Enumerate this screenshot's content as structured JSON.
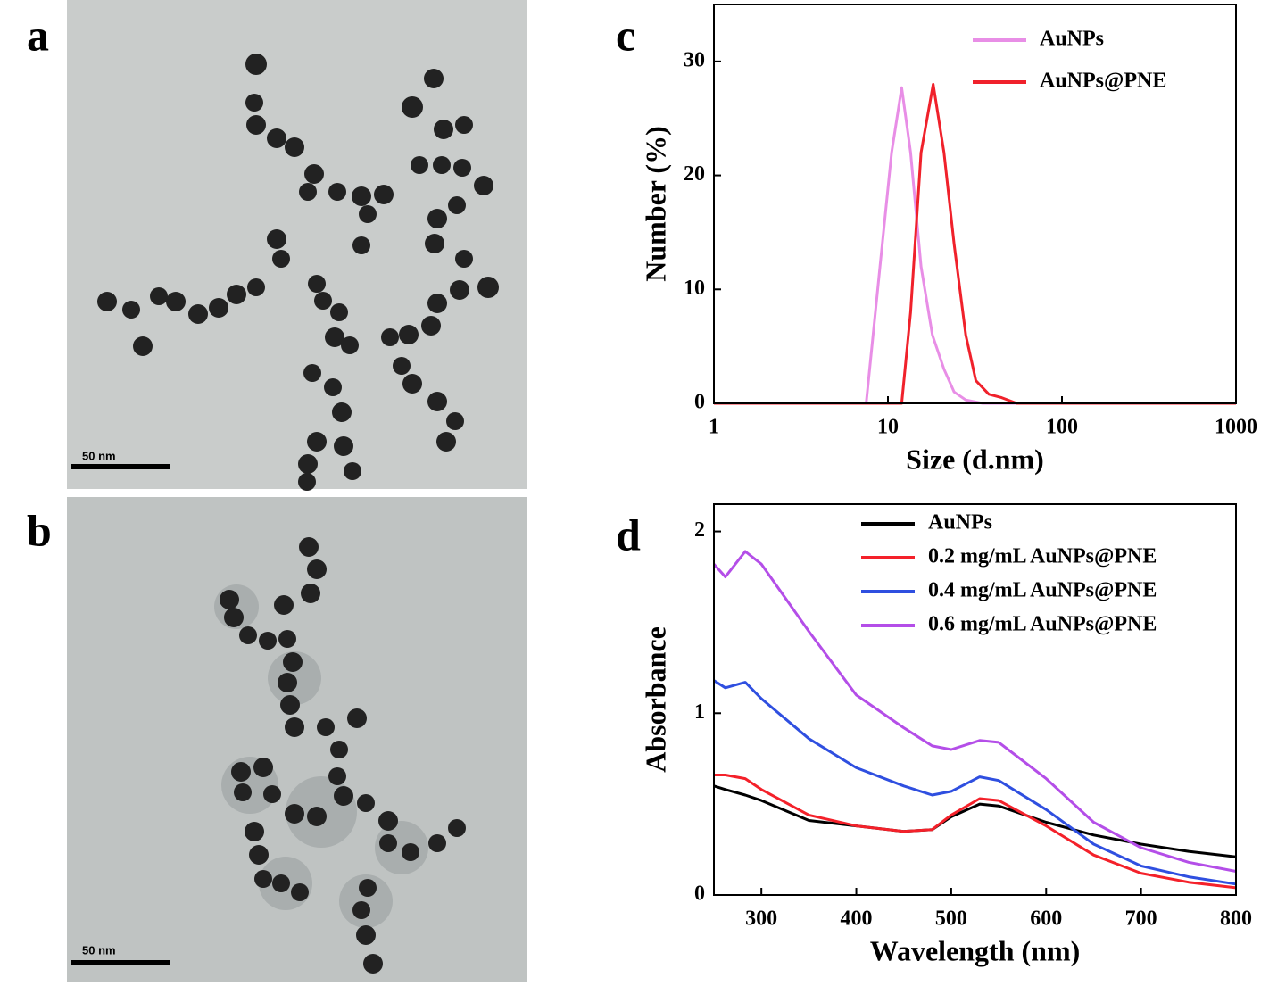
{
  "images": [
    {
      "panel": "a",
      "scale_bar": "50 nm"
    },
    {
      "panel": "b",
      "scale_bar": "50 nm"
    }
  ],
  "chart_data": [
    {
      "type": "line",
      "panel": "c",
      "x_label": "Size (d.nm)",
      "y_label": "Number (%)",
      "log_x": true,
      "legend": "upper right",
      "xlim": [
        1,
        1000
      ],
      "xticks": [
        1,
        10,
        100,
        1000
      ],
      "ylim": [
        0,
        35
      ],
      "yticks": [
        0,
        10,
        20,
        30
      ],
      "series": [
        {
          "name": "AuNPs",
          "color": "#e88ee6",
          "x": [
            1,
            7.5,
            9,
            10.5,
            12,
            13.5,
            15.5,
            18,
            21,
            24,
            28,
            35,
            1000
          ],
          "values": [
            0,
            0,
            12,
            22,
            27.7,
            22,
            12,
            6,
            3,
            1,
            0.3,
            0,
            0
          ]
        },
        {
          "name": "AuNPs@PNE",
          "color": "#f0212b",
          "x": [
            1,
            12,
            13.5,
            15.5,
            18.2,
            21,
            24,
            28,
            32,
            38,
            45,
            55,
            1000
          ],
          "values": [
            0,
            0,
            8,
            22,
            28,
            22,
            14,
            6,
            2,
            0.8,
            0.5,
            0,
            0
          ]
        }
      ]
    },
    {
      "type": "line",
      "panel": "d",
      "x_label": "Wavelength (nm)",
      "y_label": "Absorbance",
      "log_x": false,
      "legend": "upper right",
      "xlim": [
        250,
        800
      ],
      "xticks": [
        300,
        400,
        500,
        600,
        700,
        800
      ],
      "ylim": [
        0,
        2.15
      ],
      "yticks": [
        0,
        1,
        2
      ],
      "x": [
        250,
        262,
        283,
        300,
        350,
        400,
        450,
        480,
        500,
        530,
        550,
        600,
        650,
        700,
        750,
        800
      ],
      "series": [
        {
          "name": "AuNPs",
          "color": "#000000",
          "values": [
            0.6,
            0.58,
            0.55,
            0.52,
            0.41,
            0.38,
            0.35,
            0.36,
            0.43,
            0.5,
            0.49,
            0.4,
            0.33,
            0.28,
            0.24,
            0.21
          ]
        },
        {
          "name": "0.2 mg/mL AuNPs@PNE",
          "color": "#f4212a",
          "values": [
            0.66,
            0.66,
            0.64,
            0.58,
            0.44,
            0.38,
            0.35,
            0.36,
            0.44,
            0.53,
            0.52,
            0.38,
            0.22,
            0.12,
            0.07,
            0.04
          ]
        },
        {
          "name": "0.4 mg/mL AuNPs@PNE",
          "color": "#2f4fe0",
          "values": [
            1.18,
            1.14,
            1.17,
            1.08,
            0.86,
            0.7,
            0.6,
            0.55,
            0.57,
            0.65,
            0.63,
            0.47,
            0.28,
            0.16,
            0.1,
            0.06
          ]
        },
        {
          "name": "0.6 mg/mL AuNPs@PNE",
          "color": "#b44ee8",
          "values": [
            1.82,
            1.75,
            1.89,
            1.82,
            1.45,
            1.1,
            0.92,
            0.82,
            0.8,
            0.85,
            0.84,
            0.64,
            0.4,
            0.26,
            0.18,
            0.13
          ]
        }
      ]
    }
  ]
}
